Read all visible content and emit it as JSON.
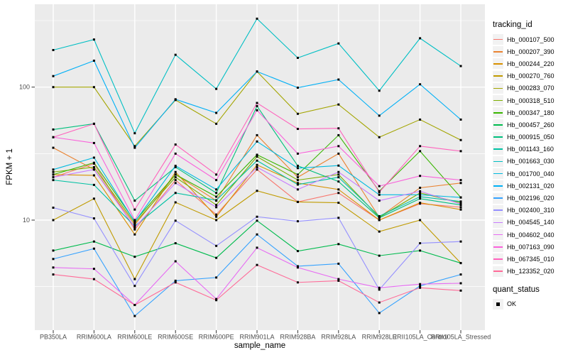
{
  "chart_data": {
    "type": "line",
    "title": "",
    "xlabel": "sample_name",
    "ylabel": "FPKM + 1",
    "y_scale": "log10",
    "grid": true,
    "legend_position": "right",
    "y_ticks": [
      {
        "value": 100,
        "label": "100"
      },
      {
        "value": 10,
        "label": "10"
      }
    ],
    "y_minor_gridlines": [
      316.23,
      31.62,
      3.162
    ],
    "categories": [
      "PB350LA",
      "RRIM600LA",
      "RRIM600LE",
      "RRIM600SE",
      "RRIM600PE",
      "RRIM901LA",
      "RRIM928BA",
      "RRIM928LA",
      "RRIM928LE",
      "RRII105LA_Control",
      "RRII105LA_Stressed"
    ],
    "series": [
      {
        "name": "Hb_000107_500",
        "color": "#F8766D",
        "values": [
          21,
          26.6,
          8.5,
          20,
          11,
          24,
          13.7,
          16,
          10,
          13.3,
          12.5
        ]
      },
      {
        "name": "Hb_000207_390",
        "color": "#EA8331",
        "values": [
          35,
          24,
          9.2,
          22,
          14,
          43.5,
          21,
          31.6,
          10.5,
          17.5,
          19
        ]
      },
      {
        "name": "Hb_000244_220",
        "color": "#D89000",
        "values": [
          22,
          21.7,
          7.8,
          23,
          10.6,
          26,
          19,
          17,
          10,
          13.5,
          12
        ]
      },
      {
        "name": "Hb_000270_760",
        "color": "#C09B00",
        "values": [
          10,
          14.5,
          3.6,
          13.6,
          10,
          16.6,
          13.7,
          13.5,
          8.2,
          10,
          4.75
        ]
      },
      {
        "name": "Hb_000283_070",
        "color": "#A3A500",
        "values": [
          100,
          100,
          36,
          80,
          53,
          131,
          63,
          74,
          42,
          57,
          40
        ]
      },
      {
        "name": "Hb_000318_510",
        "color": "#7CAE00",
        "values": [
          23,
          25,
          9.5,
          21,
          13,
          30,
          20,
          22,
          10.5,
          16,
          13.5
        ]
      },
      {
        "name": "Hb_000347_180",
        "color": "#39B600",
        "values": [
          22,
          27,
          9.8,
          22,
          15,
          31,
          22,
          43.5,
          16.5,
          33,
          14.8
        ]
      },
      {
        "name": "Hb_000457_260",
        "color": "#00BB4E",
        "values": [
          5.9,
          6.9,
          5.3,
          6.7,
          5.2,
          9.9,
          5.85,
          6.6,
          5.4,
          5.9,
          4.75
        ]
      },
      {
        "name": "Hb_000915_050",
        "color": "#00BF7D",
        "values": [
          48,
          53,
          14,
          25,
          16,
          72,
          25.6,
          19.5,
          10.4,
          14.5,
          13
        ]
      },
      {
        "name": "Hb_001143_160",
        "color": "#00C1A3",
        "values": [
          20,
          18.4,
          9,
          16,
          14.1,
          28,
          18.5,
          21,
          10.7,
          15,
          13.8
        ]
      },
      {
        "name": "Hb_001663_030",
        "color": "#00BFC4",
        "values": [
          190,
          228,
          45,
          175,
          97,
          327,
          166,
          213,
          94,
          233,
          144
        ]
      },
      {
        "name": "Hb_001700_040",
        "color": "#00BAE0",
        "values": [
          24,
          29.5,
          9.7,
          25.6,
          17,
          39,
          24.6,
          25.7,
          15.5,
          15.5,
          14.8
        ]
      },
      {
        "name": "Hb_002131_020",
        "color": "#00B0F6",
        "values": [
          121,
          158,
          35,
          81,
          64,
          131,
          99,
          114,
          61,
          105,
          57
        ]
      },
      {
        "name": "Hb_002196_020",
        "color": "#35A2FF",
        "values": [
          5.1,
          6.1,
          1.9,
          3.5,
          3.7,
          7.8,
          4.5,
          4.7,
          2.0,
          3.2,
          3.9
        ]
      },
      {
        "name": "Hb_002400_310",
        "color": "#9590FF",
        "values": [
          12.4,
          10.3,
          3.2,
          9.9,
          6.4,
          10.6,
          9.8,
          10.4,
          3.0,
          6.7,
          6.9
        ]
      },
      {
        "name": "Hb_004545_140",
        "color": "#C77CFF",
        "values": [
          21,
          24,
          8.8,
          19,
          12.5,
          25,
          17,
          23,
          14,
          16.5,
          13.2
        ]
      },
      {
        "name": "Hb_004602_040",
        "color": "#E76BF3",
        "values": [
          4.4,
          4.3,
          2.3,
          4.9,
          2.55,
          6.2,
          4.4,
          3.6,
          3.1,
          3.3,
          3.35
        ]
      },
      {
        "name": "Hb_007163_090",
        "color": "#FA62DB",
        "values": [
          42,
          38,
          10,
          31.6,
          20,
          67,
          31.6,
          36,
          18,
          21.5,
          20
        ]
      },
      {
        "name": "Hb_067345_010",
        "color": "#FF62BC",
        "values": [
          42,
          53,
          12,
          37,
          22,
          76,
          48.5,
          49,
          16.2,
          36,
          33
        ]
      },
      {
        "name": "Hb_123352_020",
        "color": "#FF6A98",
        "values": [
          3.9,
          3.6,
          2.3,
          3.4,
          2.5,
          4.6,
          3.4,
          3.5,
          2.4,
          3.1,
          2.95
        ]
      }
    ],
    "legend_tracking": {
      "title": "tracking_id"
    },
    "legend_quant": {
      "title": "quant_status",
      "entries": [
        "OK"
      ]
    },
    "marker": {
      "shape": "square",
      "color": "#000000"
    },
    "style": {
      "panel_bg": "#EBEBEB",
      "gridline_color": "#FFFFFF",
      "tick_label_color": "#4D4D4D",
      "tick_mark_color": "#333333",
      "legend_key_bg": "#F2F2F2"
    }
  }
}
